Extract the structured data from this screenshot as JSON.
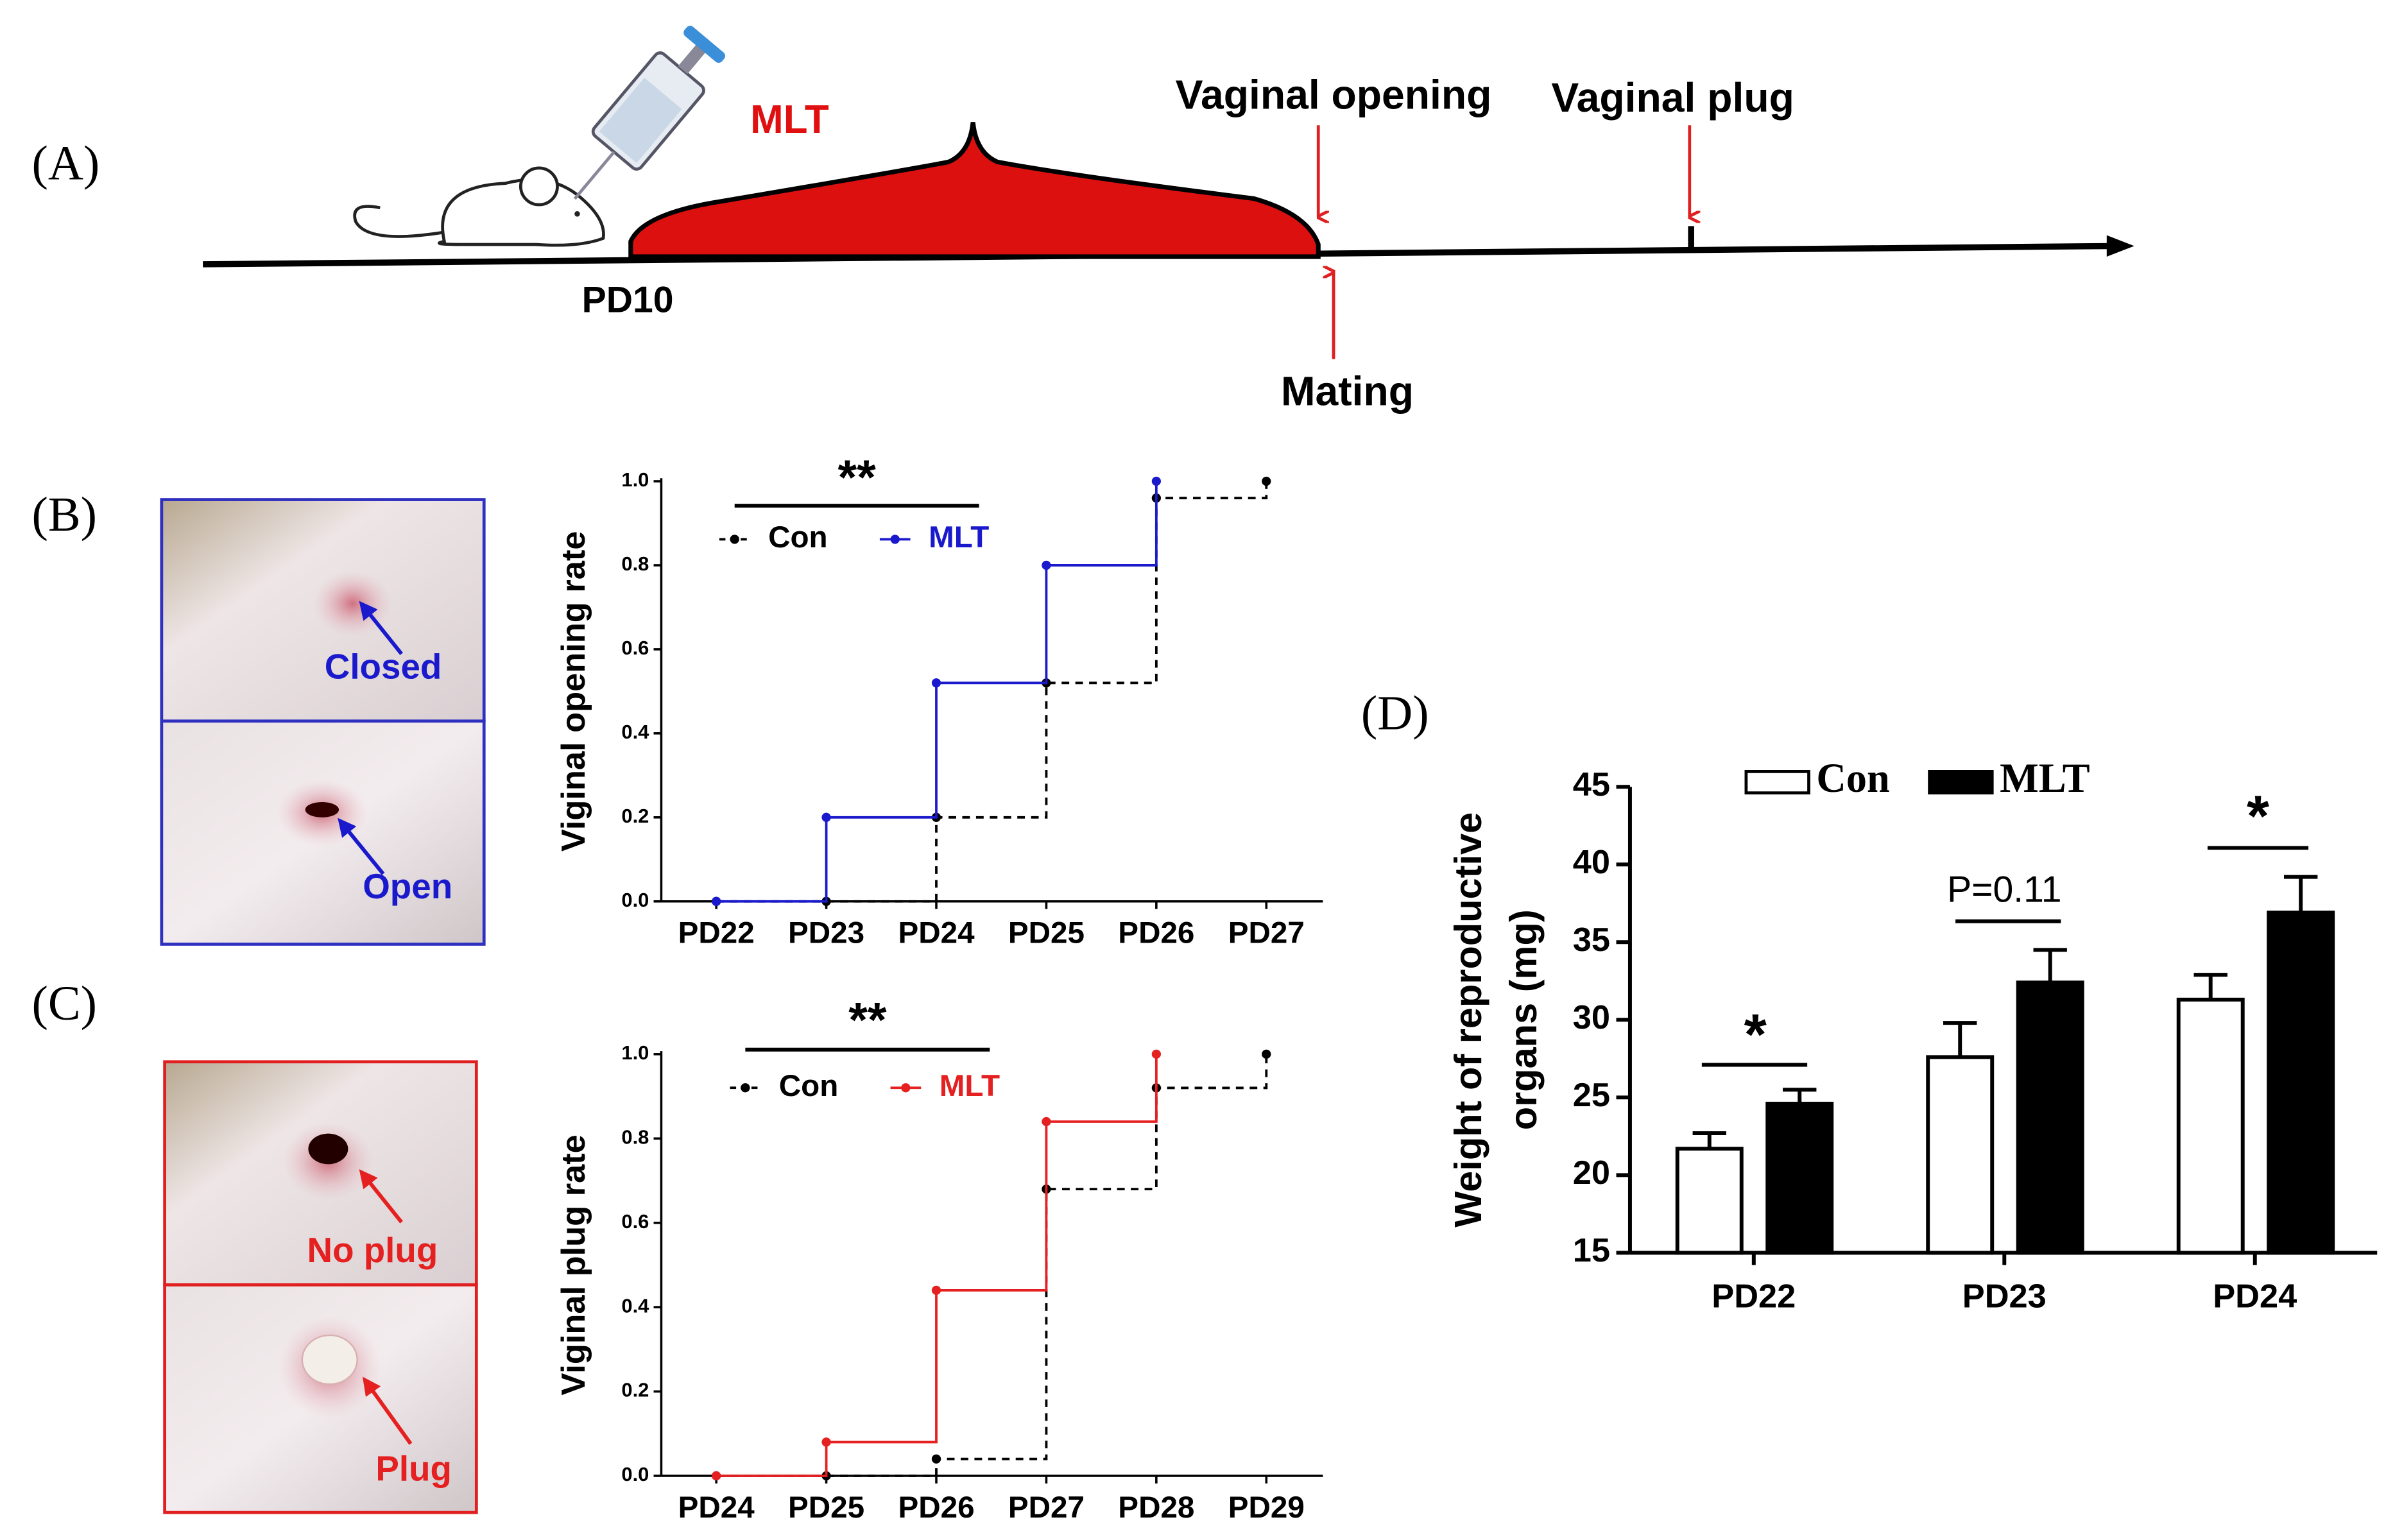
{
  "figure": {
    "panel_labels": [
      "(A)",
      "(B)",
      "(C)",
      "(D)"
    ],
    "timeline": {
      "treatment": "MLT",
      "start": "PD10",
      "events": [
        "Vaginal opening",
        "Vaginal plug"
      ],
      "mating": "Mating"
    },
    "photos_b": [
      "Closed",
      "Open"
    ],
    "photos_c": [
      "No plug",
      "Plug"
    ]
  },
  "chart_data": [
    {
      "type": "step",
      "ylabel": "Viginal opening rate",
      "categories": [
        "PD22",
        "PD23",
        "PD24",
        "PD25",
        "PD26",
        "PD27"
      ],
      "ylim": [
        0,
        1
      ],
      "yticks": [
        {
          "value": 0,
          "label": "0.0"
        },
        {
          "value": 0.2,
          "label": "0.2"
        },
        {
          "value": 0.4,
          "label": "0.4"
        },
        {
          "value": 0.6,
          "label": "0.6"
        },
        {
          "value": 0.8,
          "label": "0.8"
        },
        {
          "value": 1,
          "label": "1.0"
        }
      ],
      "series": [
        {
          "name": "Con",
          "color": "#000000",
          "line_style": "dashed",
          "values": [
            0,
            0,
            0.2,
            0.52,
            0.96,
            1.0
          ]
        },
        {
          "name": "MLT",
          "color": "#1a1acc",
          "line_style": "solid",
          "values": [
            0,
            0.2,
            0.52,
            0.8,
            1.0,
            null
          ]
        }
      ],
      "annotations": [
        "**"
      ]
    },
    {
      "type": "step",
      "ylabel": "Viginal  plug  rate",
      "categories": [
        "PD24",
        "PD25",
        "PD26",
        "PD27",
        "PD28",
        "PD29"
      ],
      "ylim": [
        0,
        1
      ],
      "yticks": [
        {
          "value": 0,
          "label": "0.0"
        },
        {
          "value": 0.2,
          "label": "0.2"
        },
        {
          "value": 0.4,
          "label": "0.4"
        },
        {
          "value": 0.6,
          "label": "0.6"
        },
        {
          "value": 0.8,
          "label": "0.8"
        },
        {
          "value": 1,
          "label": "1.0"
        }
      ],
      "series": [
        {
          "name": "Con",
          "color": "#000000",
          "line_style": "dashed",
          "values": [
            0,
            0,
            0.04,
            0.68,
            0.92,
            1.0
          ]
        },
        {
          "name": "MLT",
          "color": "#e52020",
          "line_style": "solid",
          "values": [
            0,
            0.08,
            0.44,
            0.84,
            1.0,
            null
          ]
        }
      ],
      "annotations": [
        "**"
      ]
    },
    {
      "type": "bar",
      "ylabel": [
        "Weight of reproductive",
        "organs  (mg)"
      ],
      "categories": [
        "PD22",
        "PD23",
        "PD24"
      ],
      "ylim": [
        15,
        45
      ],
      "yticks": [
        15,
        20,
        25,
        30,
        35,
        40,
        45
      ],
      "series": [
        {
          "name": "Con",
          "color": "#ffffff",
          "values": [
            21.7,
            27.6,
            31.3
          ],
          "errors": [
            1.0,
            2.2,
            1.6
          ]
        },
        {
          "name": "MLT",
          "color": "#000000",
          "values": [
            24.6,
            32.4,
            36.9
          ],
          "errors": [
            0.9,
            2.1,
            2.3
          ]
        }
      ],
      "annotations": [
        "*",
        "P=0.11",
        "*"
      ]
    }
  ]
}
